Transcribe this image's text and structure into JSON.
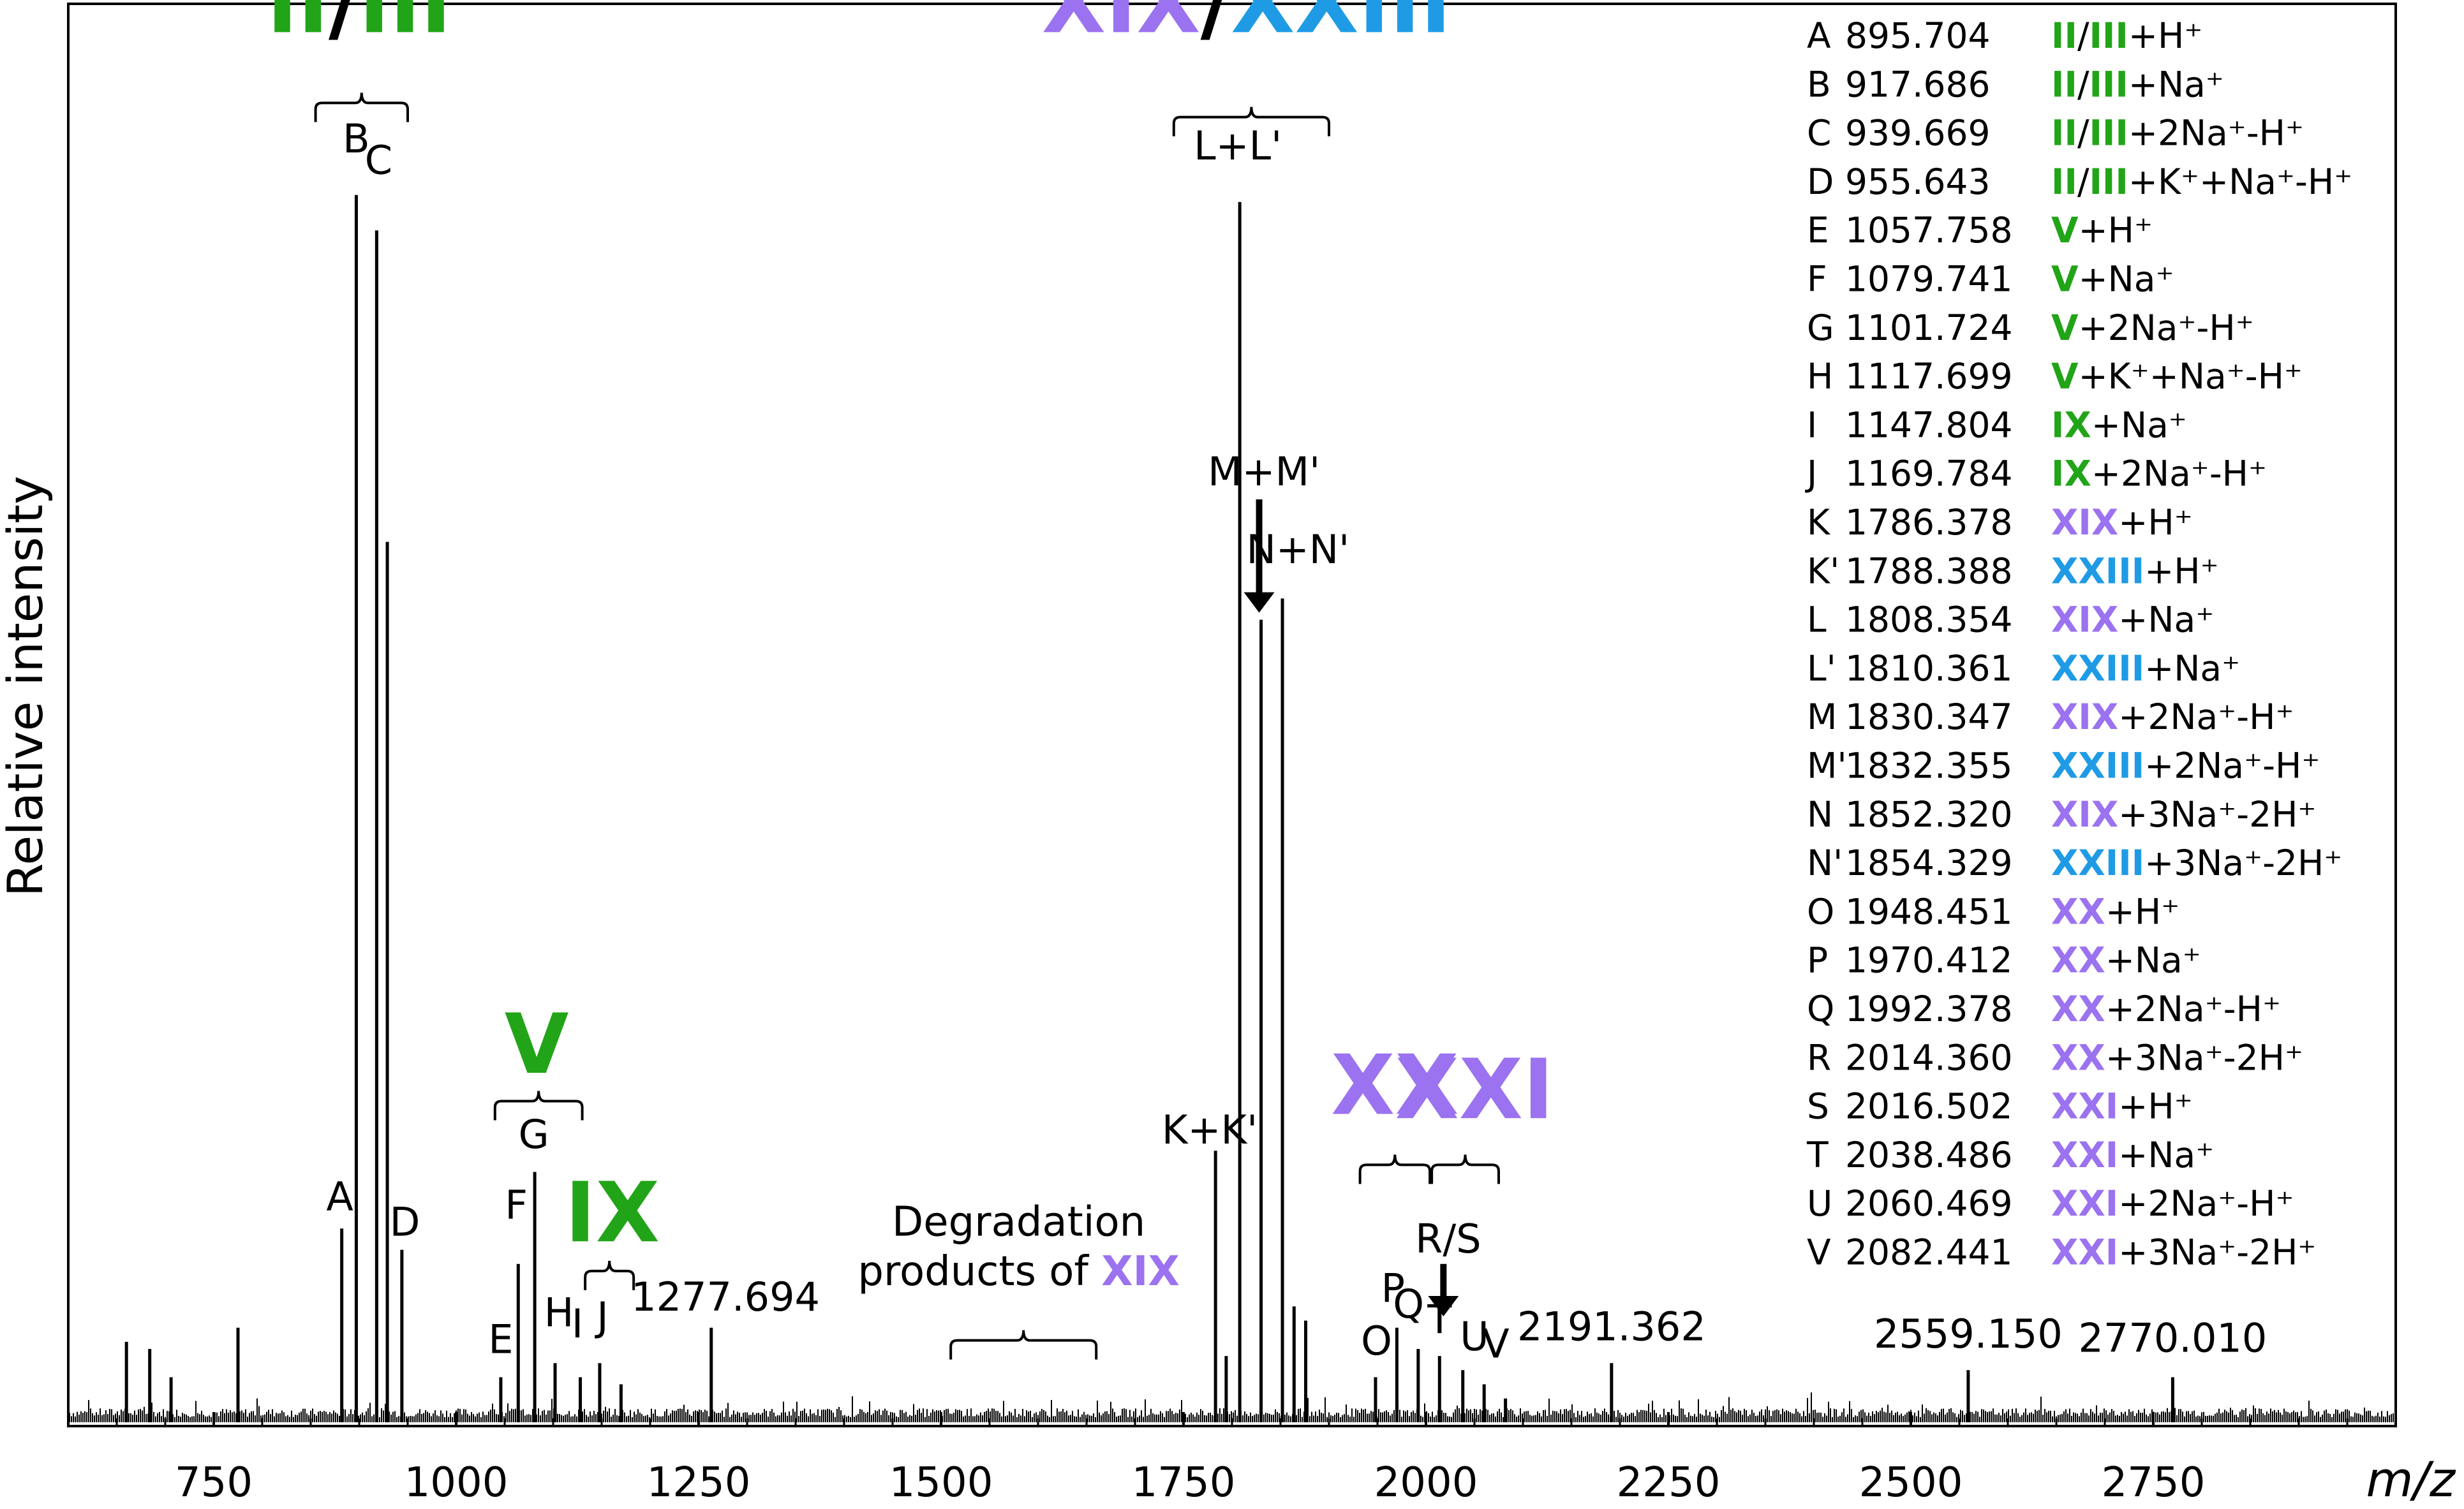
{
  "colors": {
    "green": "#22a418",
    "purple": "#9b72ef",
    "blue": "#1f9be6",
    "black": "#000000"
  },
  "chart_data": {
    "type": "line",
    "title": "",
    "xlabel": "m/z",
    "ylabel": "Relative intensity",
    "xlim": [
      600,
      3000
    ],
    "ylim": [
      0,
      100
    ],
    "x_ticks": [
      750,
      1000,
      1250,
      1500,
      1750,
      2000,
      2250,
      2500,
      2750
    ],
    "grid": false,
    "series": [
      {
        "peaks": [
          {
            "mz": 660,
            "intensity": 5.5
          },
          {
            "mz": 684,
            "intensity": 5
          },
          {
            "mz": 706,
            "intensity": 3
          },
          {
            "mz": 775,
            "intensity": 6.5
          },
          {
            "mz": 882,
            "intensity": 13.5
          },
          {
            "mz": 897,
            "intensity": 86.5
          },
          {
            "mz": 918,
            "intensity": 84
          },
          {
            "mz": 929,
            "intensity": 62
          },
          {
            "mz": 944,
            "intensity": 12
          },
          {
            "mz": 1046,
            "intensity": 3
          },
          {
            "mz": 1064,
            "intensity": 11
          },
          {
            "mz": 1081,
            "intensity": 17.5
          },
          {
            "mz": 1102,
            "intensity": 4
          },
          {
            "mz": 1128,
            "intensity": 3
          },
          {
            "mz": 1148,
            "intensity": 4
          },
          {
            "mz": 1170,
            "intensity": 2.5
          },
          {
            "mz": 1263,
            "intensity": 6.5
          },
          {
            "mz": 1783,
            "intensity": 19
          },
          {
            "mz": 1794,
            "intensity": 4.5
          },
          {
            "mz": 1808,
            "intensity": 86
          },
          {
            "mz": 1830,
            "intensity": 56.5
          },
          {
            "mz": 1852,
            "intensity": 58
          },
          {
            "mz": 1864,
            "intensity": 8
          },
          {
            "mz": 1876,
            "intensity": 7
          },
          {
            "mz": 1948,
            "intensity": 3
          },
          {
            "mz": 1970,
            "intensity": 6.5
          },
          {
            "mz": 1992,
            "intensity": 5
          },
          {
            "mz": 2014,
            "intensity": 4.5
          },
          {
            "mz": 2038,
            "intensity": 3.5
          },
          {
            "mz": 2060,
            "intensity": 2.5
          },
          {
            "mz": 2082,
            "intensity": 1.5
          },
          {
            "mz": 2191.362,
            "intensity": 4
          },
          {
            "mz": 2559.15,
            "intensity": 3.5
          },
          {
            "mz": 2770.01,
            "intensity": 3
          }
        ]
      }
    ],
    "peak_labels": [
      {
        "text": "A",
        "mz": 880,
        "intensity": 14.8
      },
      {
        "text": "B",
        "mz": 897,
        "intensity": 89.5
      },
      {
        "text": "C",
        "mz": 920,
        "intensity": 88
      },
      {
        "text": "D",
        "mz": 947,
        "intensity": 13
      },
      {
        "text": "E",
        "mz": 1046,
        "intensity": 4.7
      },
      {
        "text": "F",
        "mz": 1062,
        "intensity": 14.2
      },
      {
        "text": "G",
        "mz": 1080,
        "intensity": 19.2
      },
      {
        "text": "H",
        "mz": 1106,
        "intensity": 6.6
      },
      {
        "text": "I",
        "mz": 1125,
        "intensity": 5.8
      },
      {
        "text": "J",
        "mz": 1151,
        "intensity": 6.3
      },
      {
        "text": "1277.694",
        "mz": 1277.694,
        "intensity": 7.7
      },
      {
        "text": "K+K'",
        "mz": 1777,
        "intensity": 19.5
      },
      {
        "text": "L+L'",
        "mz": 1806,
        "intensity": 89
      },
      {
        "text": "M+M'",
        "mz": 1833,
        "intensity": 66
      },
      {
        "text": "N+N'",
        "mz": 1868,
        "intensity": 60.5
      },
      {
        "text": "O",
        "mz": 1949,
        "intensity": 4.6
      },
      {
        "text": "P",
        "mz": 1966,
        "intensity": 8.3
      },
      {
        "text": "Q",
        "mz": 1982,
        "intensity": 7.2
      },
      {
        "text": "R/S",
        "mz": 2023,
        "intensity": 11.8
      },
      {
        "text": "T",
        "mz": 2014,
        "intensity": 6.1
      },
      {
        "text": "U",
        "mz": 2050,
        "intensity": 4.9
      },
      {
        "text": "V",
        "mz": 2072,
        "intensity": 4.4
      },
      {
        "text": "2191.362",
        "mz": 2191.362,
        "intensity": 5.6
      },
      {
        "text": "2559.150",
        "mz": 2559.15,
        "intensity": 5.1
      },
      {
        "text": "2770.010",
        "mz": 2770.01,
        "intensity": 4.8
      }
    ],
    "annotations": [
      {
        "parts": [
          {
            "text": "II",
            "color": "green"
          },
          {
            "text": "/",
            "color": "black"
          },
          {
            "text": "III",
            "color": "green"
          }
        ],
        "mz": 900,
        "intensity": 98,
        "size": 130
      },
      {
        "parts": [
          {
            "text": "XIX",
            "color": "purple"
          },
          {
            "text": "/",
            "color": "black"
          },
          {
            "text": "XXIII",
            "color": "blue"
          }
        ],
        "mz": 1815,
        "intensity": 98,
        "size": 130
      },
      {
        "parts": [
          {
            "text": "V",
            "color": "green"
          }
        ],
        "mz": 1083,
        "intensity": 24.5,
        "size": 130
      },
      {
        "parts": [
          {
            "text": "IX",
            "color": "green"
          }
        ],
        "mz": 1161,
        "intensity": 12.6,
        "size": 130
      },
      {
        "parts": [
          {
            "text": "XX",
            "color": "purple"
          }
        ],
        "mz": 1968,
        "intensity": 21.6,
        "size": 130
      },
      {
        "parts": [
          {
            "text": "XXI",
            "color": "purple"
          }
        ],
        "mz": 2050,
        "intensity": 21.3,
        "size": 130
      },
      {
        "parts": [
          {
            "text": "Degradation",
            "color": "black"
          }
        ],
        "mz": 1580,
        "intensity": 13,
        "size": 64
      },
      {
        "parts": [
          {
            "text": "products of ",
            "color": "black"
          },
          {
            "text": "XIX",
            "color": "purple"
          }
        ],
        "mz": 1580,
        "intensity": 9.5,
        "size": 64
      }
    ],
    "brackets": [
      {
        "from": 855,
        "to": 950,
        "intensity": 93
      },
      {
        "from": 1040,
        "to": 1130,
        "intensity": 22.5
      },
      {
        "from": 1133,
        "to": 1183,
        "intensity": 10.5
      },
      {
        "from": 1510,
        "to": 1660,
        "intensity": 5.6
      },
      {
        "from": 1740,
        "to": 1900,
        "intensity": 92
      },
      {
        "from": 1932,
        "to": 2004,
        "intensity": 18
      },
      {
        "from": 2006,
        "to": 2075,
        "intensity": 18
      }
    ],
    "arrows": [
      {
        "mz": 1828,
        "from": 65,
        "to": 57
      },
      {
        "mz": 2018,
        "from": 11,
        "to": 7.3
      }
    ],
    "legend": [
      {
        "label": "A",
        "mz": "895.704",
        "ion": [
          {
            "text": "II",
            "color": "green"
          },
          {
            "text": "/",
            "color": "black"
          },
          {
            "text": "III",
            "color": "green"
          },
          {
            "text": "+H⁺",
            "color": "black"
          }
        ]
      },
      {
        "label": "B",
        "mz": "917.686",
        "ion": [
          {
            "text": "II",
            "color": "green"
          },
          {
            "text": "/",
            "color": "black"
          },
          {
            "text": "III",
            "color": "green"
          },
          {
            "text": "+Na⁺",
            "color": "black"
          }
        ]
      },
      {
        "label": "C",
        "mz": "939.669",
        "ion": [
          {
            "text": "II",
            "color": "green"
          },
          {
            "text": "/",
            "color": "black"
          },
          {
            "text": "III",
            "color": "green"
          },
          {
            "text": "+2Na⁺-H⁺",
            "color": "black"
          }
        ]
      },
      {
        "label": "D",
        "mz": "955.643",
        "ion": [
          {
            "text": "II",
            "color": "green"
          },
          {
            "text": "/",
            "color": "black"
          },
          {
            "text": "III",
            "color": "green"
          },
          {
            "text": "+K⁺+Na⁺-H⁺",
            "color": "black"
          }
        ]
      },
      {
        "label": "E",
        "mz": "1057.758",
        "ion": [
          {
            "text": "V",
            "color": "green"
          },
          {
            "text": "+H⁺",
            "color": "black"
          }
        ]
      },
      {
        "label": "F",
        "mz": "1079.741",
        "ion": [
          {
            "text": "V",
            "color": "green"
          },
          {
            "text": "+Na⁺",
            "color": "black"
          }
        ]
      },
      {
        "label": "G",
        "mz": "1101.724",
        "ion": [
          {
            "text": "V",
            "color": "green"
          },
          {
            "text": "+2Na⁺-H⁺",
            "color": "black"
          }
        ]
      },
      {
        "label": "H",
        "mz": "1117.699",
        "ion": [
          {
            "text": "V",
            "color": "green"
          },
          {
            "text": "+K⁺+Na⁺-H⁺",
            "color": "black"
          }
        ]
      },
      {
        "label": "I",
        "mz": "1147.804",
        "ion": [
          {
            "text": "IX",
            "color": "green"
          },
          {
            "text": "+Na⁺",
            "color": "black"
          }
        ]
      },
      {
        "label": "J",
        "mz": "1169.784",
        "ion": [
          {
            "text": "IX",
            "color": "green"
          },
          {
            "text": "+2Na⁺-H⁺",
            "color": "black"
          }
        ]
      },
      {
        "label": "K",
        "mz": "1786.378",
        "ion": [
          {
            "text": "XIX",
            "color": "purple"
          },
          {
            "text": "+H⁺",
            "color": "black"
          }
        ]
      },
      {
        "label": "K'",
        "mz": "1788.388",
        "ion": [
          {
            "text": "XXIII",
            "color": "blue"
          },
          {
            "text": "+H⁺",
            "color": "black"
          }
        ]
      },
      {
        "label": "L",
        "mz": "1808.354",
        "ion": [
          {
            "text": "XIX",
            "color": "purple"
          },
          {
            "text": "+Na⁺",
            "color": "black"
          }
        ]
      },
      {
        "label": "L'",
        "mz": "1810.361",
        "ion": [
          {
            "text": "XXIII",
            "color": "blue"
          },
          {
            "text": "+Na⁺",
            "color": "black"
          }
        ]
      },
      {
        "label": "M",
        "mz": "1830.347",
        "ion": [
          {
            "text": "XIX",
            "color": "purple"
          },
          {
            "text": "+2Na⁺-H⁺",
            "color": "black"
          }
        ]
      },
      {
        "label": "M'",
        "mz": "1832.355",
        "ion": [
          {
            "text": "XXIII",
            "color": "blue"
          },
          {
            "text": "+2Na⁺-H⁺",
            "color": "black"
          }
        ]
      },
      {
        "label": "N",
        "mz": "1852.320",
        "ion": [
          {
            "text": "XIX",
            "color": "purple"
          },
          {
            "text": "+3Na⁺-2H⁺",
            "color": "black"
          }
        ]
      },
      {
        "label": "N'",
        "mz": "1854.329",
        "ion": [
          {
            "text": "XXIII",
            "color": "blue"
          },
          {
            "text": "+3Na⁺-2H⁺",
            "color": "black"
          }
        ]
      },
      {
        "label": "O",
        "mz": "1948.451",
        "ion": [
          {
            "text": "XX",
            "color": "purple"
          },
          {
            "text": "+H⁺",
            "color": "black"
          }
        ]
      },
      {
        "label": "P",
        "mz": "1970.412",
        "ion": [
          {
            "text": "XX",
            "color": "purple"
          },
          {
            "text": "+Na⁺",
            "color": "black"
          }
        ]
      },
      {
        "label": "Q",
        "mz": "1992.378",
        "ion": [
          {
            "text": "XX",
            "color": "purple"
          },
          {
            "text": "+2Na⁺-H⁺",
            "color": "black"
          }
        ]
      },
      {
        "label": "R",
        "mz": "2014.360",
        "ion": [
          {
            "text": "XX",
            "color": "purple"
          },
          {
            "text": "+3Na⁺-2H⁺",
            "color": "black"
          }
        ]
      },
      {
        "label": "S",
        "mz": "2016.502",
        "ion": [
          {
            "text": "XXI",
            "color": "purple"
          },
          {
            "text": "+H⁺",
            "color": "black"
          }
        ]
      },
      {
        "label": "T",
        "mz": "2038.486",
        "ion": [
          {
            "text": "XXI",
            "color": "purple"
          },
          {
            "text": "+Na⁺",
            "color": "black"
          }
        ]
      },
      {
        "label": "U",
        "mz": "2060.469",
        "ion": [
          {
            "text": "XXI",
            "color": "purple"
          },
          {
            "text": "+2Na⁺-H⁺",
            "color": "black"
          }
        ]
      },
      {
        "label": "V",
        "mz": "2082.441",
        "ion": [
          {
            "text": "XXI",
            "color": "purple"
          },
          {
            "text": "+3Na⁺-2H⁺",
            "color": "black"
          }
        ]
      }
    ]
  }
}
